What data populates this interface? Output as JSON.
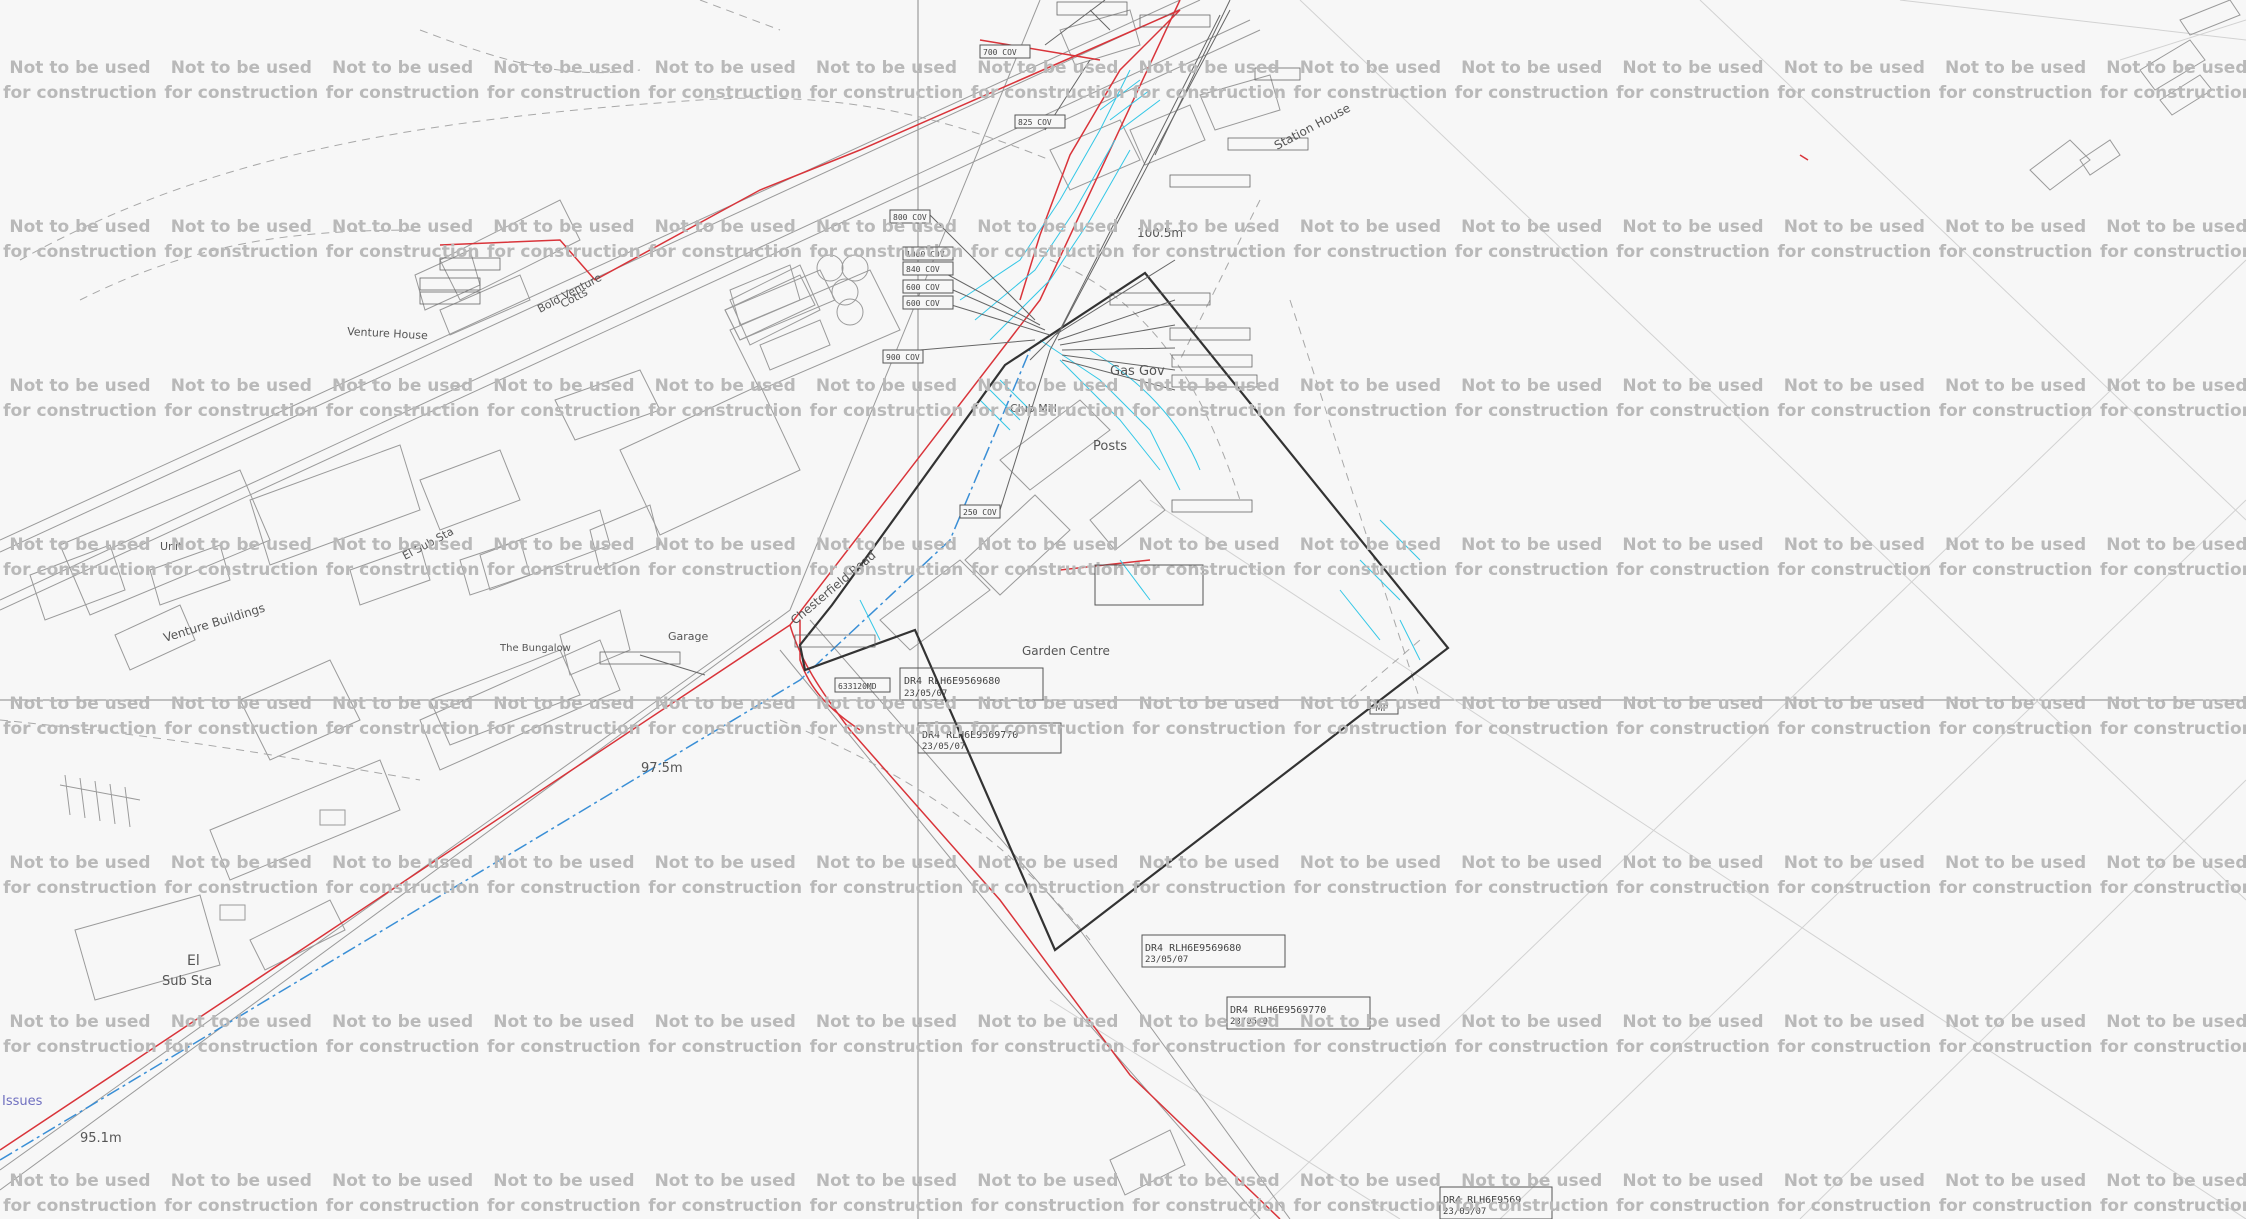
{
  "watermark": {
    "line1": "Not to be used",
    "line2": "for construction",
    "color": "#b9b9b9"
  },
  "colors": {
    "background": "#f7f7f7",
    "basemap": "#9a9a9a",
    "electric": "#d9343a",
    "water": "#3a8fd6",
    "gas": "#33c7e6",
    "site_boundary": "#333333"
  },
  "labels": {
    "venture_house": "Venture House",
    "bold_venture": "Bold Venture",
    "cotts": "Cotts",
    "station_house": "Station House",
    "level_100": "100.5m",
    "gas_gov": "Gas Gov",
    "posts": "Posts",
    "club_mill": "Club Mill",
    "unit": "Unit",
    "el_sub_sta": "El Sub Sta",
    "venture_buildings": "Venture Buildings",
    "the_bungalow": "The Bungalow",
    "garage": "Garage",
    "chesterfield_road": "Chesterfield Road",
    "garden_centre": "Garden Centre",
    "level_97": "97.5m",
    "el": "El",
    "sub_sta": "Sub Sta",
    "issues": "Issues",
    "level_95": "95.1m",
    "mp": "MP"
  },
  "cov_boxes": [
    "700 COV",
    "825 COV",
    "800 COV",
    "1000 COV",
    "840 COV",
    "600 COV",
    "600 COV",
    "900 COV",
    "250 COV"
  ],
  "ref_boxes": {
    "ref1": "DR4 RLH6E9569680",
    "ref1_date": "23/05/07",
    "ref2": "DR4 RLH6E9569770",
    "ref2_date": "23/05/07",
    "ref3": "DR4 RLH6E9569680",
    "ref3_date": "23/05/07",
    "ref4": "DR4 RLH6E9569770",
    "ref4_date": "23/05/07",
    "ref5": "DR4 RLH6E9569",
    "ref5_date": "23/05/07",
    "ref6": "633120MD"
  }
}
